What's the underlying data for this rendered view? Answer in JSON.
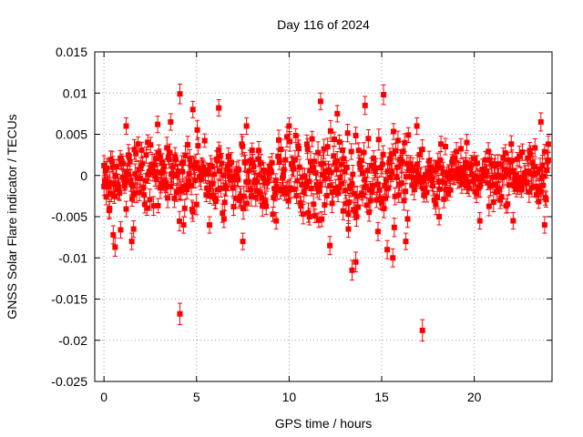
{
  "chart_data": {
    "type": "scatter",
    "title": "Day 116 of 2024",
    "xlabel": "GPS time / hours",
    "ylabel": "GNSS Solar Flare indicator / TECUs",
    "xlim": [
      -0.5,
      24.2
    ],
    "ylim": [
      -0.025,
      0.015
    ],
    "x_ticks": [
      0,
      5,
      10,
      15,
      20
    ],
    "x_tick_labels": [
      "0",
      "5",
      "10",
      "15",
      "20"
    ],
    "y_ticks": [
      -0.025,
      -0.02,
      -0.015,
      -0.01,
      -0.005,
      0,
      0.005,
      0.01,
      0.015
    ],
    "y_tick_labels": [
      "-0.025",
      "-0.02",
      "-0.015",
      "-0.01",
      "-0.005",
      "0",
      "0.005",
      "0.01",
      "0.015"
    ],
    "grid": true,
    "series_color": "#ff0000",
    "series": [
      {
        "points": [
          {
            "x": 0.0,
            "y": 0.0012,
            "err": 0.0012
          },
          {
            "x": 0.3,
            "y": -0.004,
            "err": 0.0011
          },
          {
            "x": 0.5,
            "y": -0.0072,
            "err": 0.0011
          },
          {
            "x": 0.6,
            "y": -0.0087,
            "err": 0.0011
          },
          {
            "x": 0.9,
            "y": -0.0066,
            "err": 0.001
          },
          {
            "x": 1.5,
            "y": -0.008,
            "err": 0.001
          },
          {
            "x": 1.6,
            "y": -0.0065,
            "err": 0.001
          },
          {
            "x": 1.2,
            "y": 0.006,
            "err": 0.001
          },
          {
            "x": 2.9,
            "y": 0.0062,
            "err": 0.001
          },
          {
            "x": 3.6,
            "y": 0.0065,
            "err": 0.001
          },
          {
            "x": 4.1,
            "y": -0.0168,
            "err": 0.0013
          },
          {
            "x": 4.1,
            "y": 0.0099,
            "err": 0.0012
          },
          {
            "x": 4.3,
            "y": -0.006,
            "err": 0.001
          },
          {
            "x": 4.8,
            "y": 0.008,
            "err": 0.001
          },
          {
            "x": 5.7,
            "y": -0.006,
            "err": 0.001
          },
          {
            "x": 6.2,
            "y": 0.0082,
            "err": 0.001
          },
          {
            "x": 7.5,
            "y": -0.008,
            "err": 0.001
          },
          {
            "x": 7.7,
            "y": 0.006,
            "err": 0.001
          },
          {
            "x": 9.3,
            "y": -0.0055,
            "err": 0.001
          },
          {
            "x": 10.0,
            "y": 0.006,
            "err": 0.001
          },
          {
            "x": 11.1,
            "y": -0.005,
            "err": 0.001
          },
          {
            "x": 11.7,
            "y": 0.009,
            "err": 0.001
          },
          {
            "x": 12.2,
            "y": -0.0085,
            "err": 0.0011
          },
          {
            "x": 12.6,
            "y": 0.0075,
            "err": 0.001
          },
          {
            "x": 13.2,
            "y": -0.0065,
            "err": 0.001
          },
          {
            "x": 13.4,
            "y": -0.0115,
            "err": 0.0012
          },
          {
            "x": 13.6,
            "y": -0.0105,
            "err": 0.0012
          },
          {
            "x": 14.1,
            "y": 0.0085,
            "err": 0.0011
          },
          {
            "x": 14.8,
            "y": -0.0068,
            "err": 0.0011
          },
          {
            "x": 15.1,
            "y": 0.0098,
            "err": 0.0012
          },
          {
            "x": 15.3,
            "y": -0.009,
            "err": 0.0011
          },
          {
            "x": 15.6,
            "y": -0.01,
            "err": 0.0011
          },
          {
            "x": 16.3,
            "y": -0.008,
            "err": 0.001
          },
          {
            "x": 16.9,
            "y": 0.006,
            "err": 0.001
          },
          {
            "x": 17.2,
            "y": -0.0188,
            "err": 0.0013
          },
          {
            "x": 18.1,
            "y": -0.005,
            "err": 0.001
          },
          {
            "x": 19.6,
            "y": 0.004,
            "err": 0.001
          },
          {
            "x": 20.3,
            "y": -0.0055,
            "err": 0.001
          },
          {
            "x": 22.1,
            "y": -0.0055,
            "err": 0.001
          },
          {
            "x": 23.6,
            "y": 0.0065,
            "err": 0.0011
          },
          {
            "x": 23.8,
            "y": -0.006,
            "err": 0.001
          },
          {
            "x": 24.0,
            "y": 0.0038,
            "err": 0.001
          }
        ],
        "dense_band": {
          "x_start": 0.0,
          "x_end": 24.0,
          "x_step": 0.04,
          "segments": [
            {
              "x": [
                0.0,
                4.0
              ],
              "y_spread": 0.005
            },
            {
              "x": [
                4.0,
                11.0
              ],
              "y_spread": 0.0055
            },
            {
              "x": [
                11.0,
                16.5
              ],
              "y_spread": 0.0065
            },
            {
              "x": [
                16.5,
                20.0
              ],
              "y_spread": 0.004
            },
            {
              "x": [
                20.0,
                24.0
              ],
              "y_spread": 0.0042
            }
          ]
        }
      }
    ]
  }
}
